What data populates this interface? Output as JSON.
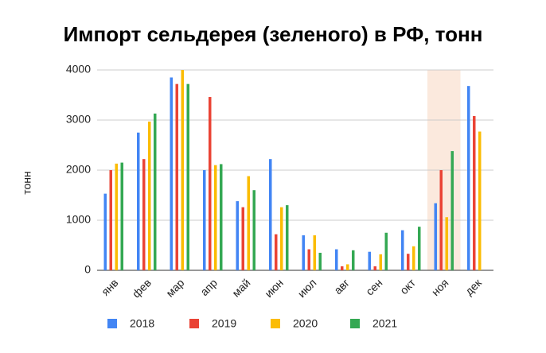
{
  "chart_data": {
    "type": "bar",
    "title": "Импорт сельдерея (зеленого) в РФ, тонн",
    "y_label": "тонн",
    "categories": [
      "янв",
      "фев",
      "мар",
      "апр",
      "май",
      "июн",
      "июл",
      "авг",
      "сен",
      "окт",
      "ноя",
      "дек"
    ],
    "series": [
      {
        "name": "2018",
        "color": "#4285f4",
        "values": [
          1530,
          2750,
          3850,
          2000,
          1380,
          2220,
          700,
          420,
          370,
          800,
          1340,
          3680
        ]
      },
      {
        "name": "2019",
        "color": "#ea4335",
        "values": [
          2000,
          2220,
          3720,
          3460,
          1260,
          720,
          420,
          80,
          80,
          330,
          2000,
          3080
        ]
      },
      {
        "name": "2020",
        "color": "#fbbc04",
        "values": [
          2130,
          2970,
          4000,
          2100,
          1880,
          1260,
          700,
          120,
          320,
          480,
          1060,
          2770
        ]
      },
      {
        "name": "2021",
        "color": "#34a853",
        "values": [
          2150,
          3130,
          3720,
          2120,
          1600,
          1300,
          350,
          400,
          750,
          870,
          2380,
          null
        ]
      }
    ],
    "ylim": [
      0,
      4000
    ],
    "yticks": [
      0,
      1000,
      2000,
      3000,
      4000
    ],
    "grid": true,
    "highlight_category": 10,
    "highlight_color": "#fbe9dd"
  }
}
